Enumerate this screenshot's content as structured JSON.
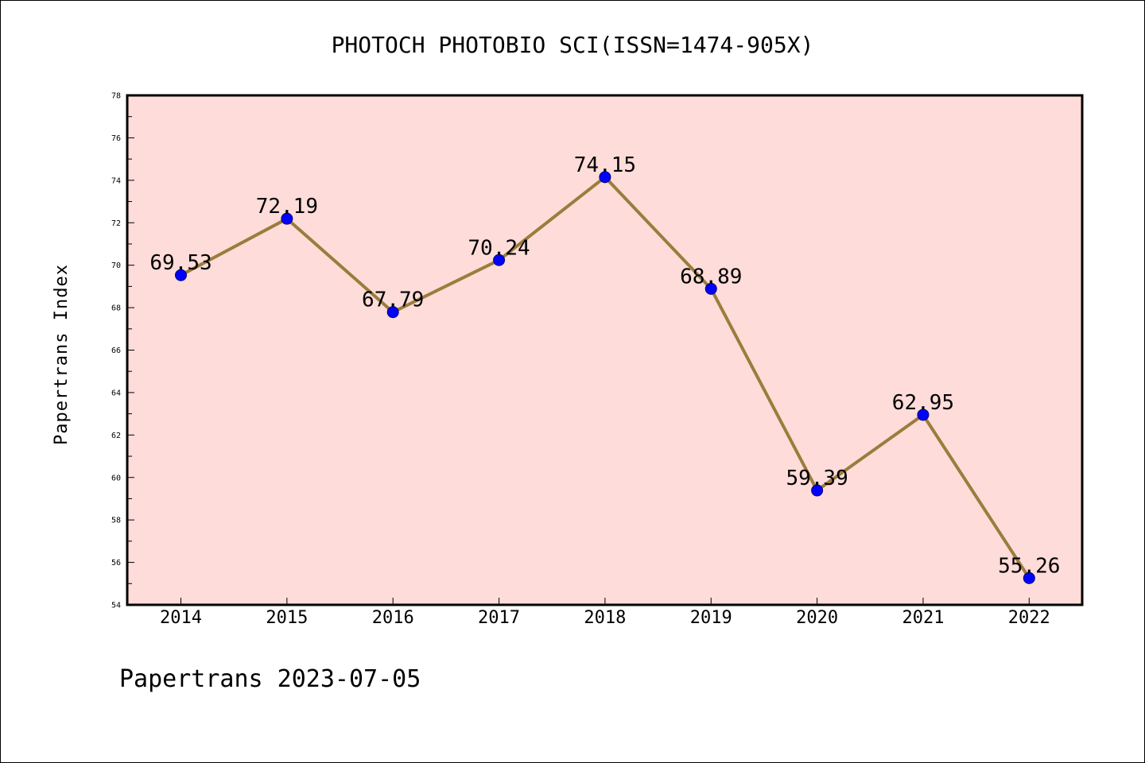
{
  "chart_data": {
    "type": "line",
    "title": "PHOTOCH PHOTOBIO SCI(ISSN=1474-905X)",
    "xlabel": "",
    "ylabel": "Papertrans Index",
    "categories": [
      "2014",
      "2015",
      "2016",
      "2017",
      "2018",
      "2019",
      "2020",
      "2021",
      "2022"
    ],
    "series": [
      {
        "values": [
          69.53,
          72.19,
          67.79,
          70.24,
          74.15,
          68.89,
          59.39,
          62.95,
          55.26
        ],
        "labels": [
          "69.53",
          "72.19",
          "67.79",
          "70.24",
          "74.15",
          "68.89",
          "59.39",
          "62.95",
          "55.26"
        ]
      }
    ],
    "ylim": [
      54,
      78
    ],
    "yticks": [
      "54",
      "56",
      "58",
      "60",
      "62",
      "64",
      "66",
      "68",
      "70",
      "72",
      "74",
      "76",
      "78"
    ],
    "grid": false,
    "colors": {
      "plot_background": "#fddcd9",
      "line": "#9a7d3c",
      "marker": "#0000ff",
      "marker_edge": "#00007a"
    }
  },
  "footer": "Papertrans 2023-07-05"
}
